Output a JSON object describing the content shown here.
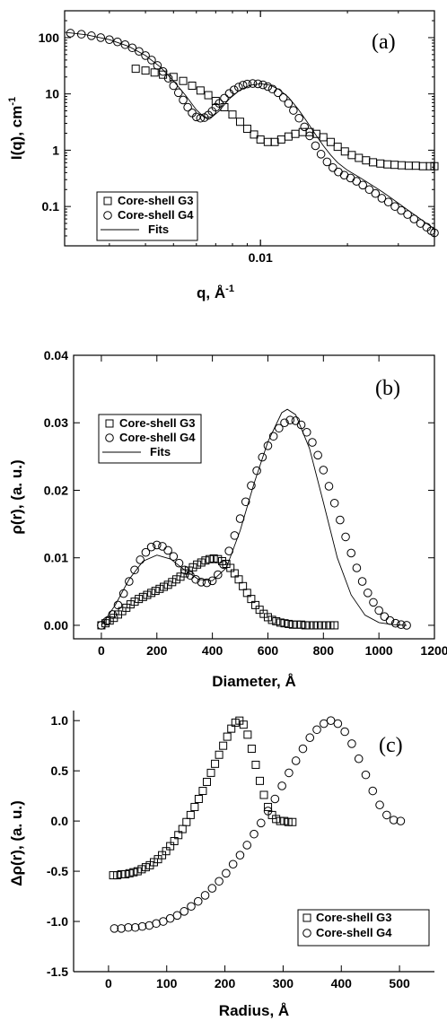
{
  "chart_data": [
    {
      "type": "scatter",
      "panel_label": "(a)",
      "xlabel": "q, Å",
      "xlabel_sup": "-1",
      "ylabel": "I(q), cm",
      "ylabel_sup": "-1",
      "xscale": "log",
      "yscale": "log",
      "xlim": [
        0.0021,
        0.04
      ],
      "ylim": [
        0.02,
        300
      ],
      "x_tick_labels": [
        {
          "value": 0.01,
          "label": "0.01"
        }
      ],
      "y_tick_labels": [
        {
          "value": 0.1,
          "label": "0.1"
        },
        {
          "value": 1,
          "label": "1"
        },
        {
          "value": 10,
          "label": "10"
        },
        {
          "value": 100,
          "label": "100"
        }
      ],
      "legend": {
        "position": "bottom-left",
        "entries": [
          "Core-shell G3",
          "Core-shell G4",
          "Fits"
        ]
      },
      "series": [
        {
          "name": "Core-shell G3",
          "marker": "square",
          "x": [
            0.0037,
            0.004,
            0.0043,
            0.0046,
            0.005,
            0.0054,
            0.0058,
            0.0062,
            0.0066,
            0.007,
            0.0075,
            0.008,
            0.0085,
            0.009,
            0.0095,
            0.01,
            0.0106,
            0.0112,
            0.0118,
            0.0125,
            0.0132,
            0.014,
            0.0148,
            0.0156,
            0.0165,
            0.0175,
            0.0185,
            0.0196,
            0.0207,
            0.0219,
            0.0232,
            0.0245,
            0.026,
            0.0275,
            0.0291,
            0.0308,
            0.0326,
            0.0345,
            0.0365,
            0.0386,
            0.04
          ],
          "y": [
            28,
            26,
            24,
            22,
            20,
            17,
            14,
            11.5,
            9.5,
            7.5,
            5.8,
            4.3,
            3.2,
            2.4,
            1.9,
            1.55,
            1.4,
            1.4,
            1.55,
            1.75,
            1.95,
            2.1,
            2.1,
            1.95,
            1.7,
            1.4,
            1.15,
            0.95,
            0.82,
            0.73,
            0.66,
            0.61,
            0.58,
            0.56,
            0.55,
            0.54,
            0.53,
            0.53,
            0.52,
            0.52,
            0.52
          ]
        },
        {
          "name": "Core-shell G4",
          "marker": "circle",
          "x": [
            0.0022,
            0.0024,
            0.0026,
            0.0028,
            0.003,
            0.0032,
            0.0034,
            0.0036,
            0.0038,
            0.004,
            0.0042,
            0.0044,
            0.0046,
            0.0048,
            0.005,
            0.0052,
            0.0054,
            0.0056,
            0.0058,
            0.006,
            0.0062,
            0.0064,
            0.0066,
            0.0068,
            0.007,
            0.0072,
            0.0075,
            0.0078,
            0.0081,
            0.0084,
            0.0087,
            0.009,
            0.0094,
            0.0098,
            0.0102,
            0.0106,
            0.011,
            0.0115,
            0.012,
            0.0125,
            0.013,
            0.0136,
            0.0142,
            0.0148,
            0.0155,
            0.0162,
            0.017,
            0.0178,
            0.0186,
            0.0195,
            0.0205,
            0.0215,
            0.0226,
            0.0238,
            0.025,
            0.0263,
            0.0277,
            0.0292,
            0.0307,
            0.0323,
            0.034,
            0.0358,
            0.0376,
            0.039,
            0.04
          ],
          "y": [
            120,
            115,
            108,
            100,
            92,
            84,
            75,
            66,
            57,
            48,
            40,
            32,
            25,
            19,
            14,
            10.5,
            7.8,
            5.8,
            4.6,
            3.9,
            3.7,
            3.8,
            4.2,
            4.9,
            5.8,
            6.8,
            8.4,
            10.2,
            11.8,
            13.2,
            14.3,
            15.0,
            15.3,
            15.1,
            14.5,
            13.5,
            12.2,
            10.5,
            8.6,
            6.8,
            5.1,
            3.7,
            2.6,
            1.8,
            1.2,
            0.85,
            0.62,
            0.49,
            0.41,
            0.36,
            0.32,
            0.28,
            0.24,
            0.2,
            0.17,
            0.14,
            0.12,
            0.1,
            0.085,
            0.072,
            0.06,
            0.05,
            0.043,
            0.037,
            0.034
          ]
        },
        {
          "name": "Fits",
          "line": true,
          "x": [
            0.0021,
            0.0025,
            0.003,
            0.0035,
            0.004,
            0.0045,
            0.005,
            0.0055,
            0.006,
            0.0064,
            0.0068,
            0.0072,
            0.0078,
            0.0085,
            0.0092,
            0.01,
            0.0108,
            0.0116,
            0.0125,
            0.0135,
            0.0145,
            0.0155,
            0.0165,
            0.0175,
            0.0185,
            0.02,
            0.022,
            0.024,
            0.0265,
            0.029,
            0.032,
            0.035,
            0.038,
            0.04
          ],
          "y": [
            125,
            112,
            92,
            70,
            48,
            30,
            17,
            9.5,
            5.2,
            3.8,
            3.9,
            5.0,
            8.2,
            11.8,
            14.2,
            15.2,
            14.3,
            12.0,
            8.7,
            5.4,
            3.2,
            1.9,
            1.2,
            0.82,
            0.6,
            0.44,
            0.33,
            0.25,
            0.18,
            0.13,
            0.09,
            0.065,
            0.048,
            0.04
          ]
        }
      ]
    },
    {
      "type": "scatter",
      "panel_label": "(b)",
      "xlabel": "Diameter, Å",
      "ylabel": "ρ(r), (a. u.)",
      "xlim": [
        -100,
        1200
      ],
      "ylim": [
        -0.002,
        0.04
      ],
      "x_tick_labels": [
        {
          "value": 0,
          "label": "0"
        },
        {
          "value": 200,
          "label": "200"
        },
        {
          "value": 400,
          "label": "400"
        },
        {
          "value": 600,
          "label": "600"
        },
        {
          "value": 800,
          "label": "800"
        },
        {
          "value": 1000,
          "label": "1000"
        },
        {
          "value": 1200,
          "label": "1200"
        }
      ],
      "y_tick_labels": [
        {
          "value": 0.0,
          "label": "0.00"
        },
        {
          "value": 0.01,
          "label": "0.01"
        },
        {
          "value": 0.02,
          "label": "0.02"
        },
        {
          "value": 0.03,
          "label": "0.03"
        },
        {
          "value": 0.04,
          "label": "0.04"
        }
      ],
      "legend": {
        "position": "top-left",
        "entries": [
          "Core-shell G3",
          "Core-shell G4",
          "Fits"
        ]
      },
      "series": [
        {
          "name": "Core-shell G3",
          "marker": "square",
          "x": [
            0,
            15,
            30,
            45,
            60,
            75,
            90,
            105,
            120,
            135,
            150,
            165,
            180,
            195,
            210,
            225,
            240,
            255,
            270,
            285,
            300,
            315,
            330,
            345,
            360,
            375,
            390,
            405,
            420,
            435,
            450,
            465,
            480,
            495,
            510,
            525,
            540,
            555,
            570,
            585,
            600,
            615,
            630,
            645,
            660,
            675,
            690,
            705,
            720,
            735,
            750,
            765,
            780,
            795,
            810,
            825,
            840
          ],
          "y": [
            0.0,
            0.0003,
            0.0007,
            0.0011,
            0.0016,
            0.0021,
            0.0026,
            0.0031,
            0.0035,
            0.0039,
            0.0042,
            0.0045,
            0.0048,
            0.0051,
            0.0054,
            0.0057,
            0.006,
            0.0064,
            0.0068,
            0.0072,
            0.0077,
            0.0081,
            0.0086,
            0.009,
            0.0093,
            0.0096,
            0.0098,
            0.0099,
            0.0098,
            0.0095,
            0.0091,
            0.0085,
            0.0077,
            0.0068,
            0.0058,
            0.0048,
            0.0039,
            0.003,
            0.0023,
            0.0017,
            0.0012,
            0.0008,
            0.0006,
            0.0004,
            0.0003,
            0.0002,
            0.0001,
            0.0001,
            0.0001,
            0.0,
            0.0,
            0.0,
            0.0,
            0.0,
            0.0,
            0.0,
            0.0
          ]
        },
        {
          "name": "Core-shell G4",
          "marker": "circle",
          "x": [
            0,
            20,
            40,
            60,
            80,
            100,
            120,
            140,
            160,
            180,
            200,
            220,
            240,
            260,
            280,
            300,
            320,
            340,
            360,
            380,
            400,
            420,
            440,
            460,
            480,
            500,
            520,
            540,
            560,
            580,
            600,
            620,
            640,
            660,
            680,
            700,
            720,
            740,
            760,
            780,
            800,
            820,
            840,
            860,
            880,
            900,
            920,
            940,
            960,
            980,
            1000,
            1020,
            1040,
            1060,
            1080,
            1100
          ],
          "y": [
            0.0,
            0.0006,
            0.0016,
            0.003,
            0.0047,
            0.0065,
            0.0082,
            0.0097,
            0.0108,
            0.0116,
            0.0119,
            0.0117,
            0.0111,
            0.0102,
            0.0092,
            0.0082,
            0.0074,
            0.0068,
            0.0064,
            0.0063,
            0.0066,
            0.0075,
            0.009,
            0.011,
            0.0133,
            0.0158,
            0.0183,
            0.0207,
            0.0229,
            0.0249,
            0.0266,
            0.028,
            0.0292,
            0.03,
            0.0304,
            0.0303,
            0.0297,
            0.0286,
            0.0271,
            0.0252,
            0.023,
            0.0206,
            0.0181,
            0.0156,
            0.0131,
            0.0107,
            0.0085,
            0.0065,
            0.0048,
            0.0034,
            0.0022,
            0.0013,
            0.0007,
            0.0003,
            0.0001,
            0.0
          ]
        },
        {
          "name": "Fits",
          "line": true,
          "x": [
            0,
            50,
            100,
            150,
            200,
            250,
            300,
            350,
            400,
            450,
            500,
            550,
            600,
            650,
            670,
            700,
            750,
            800,
            850,
            900,
            950,
            1000,
            1050,
            1100
          ],
          "y": [
            0.0,
            0.003,
            0.0068,
            0.0095,
            0.0104,
            0.0098,
            0.0082,
            0.0068,
            0.0066,
            0.0085,
            0.014,
            0.021,
            0.0272,
            0.0315,
            0.032,
            0.0312,
            0.0262,
            0.0182,
            0.01,
            0.0045,
            0.0015,
            0.0004,
            0.0001,
            0.0
          ]
        }
      ]
    },
    {
      "type": "scatter",
      "panel_label": "(c)",
      "xlabel": "Radius, Å",
      "ylabel": "Δρ(r), (a. u.)",
      "xlim": [
        -60,
        560
      ],
      "ylim": [
        -1.5,
        1.1
      ],
      "x_tick_labels": [
        {
          "value": 0,
          "label": "0"
        },
        {
          "value": 100,
          "label": "100"
        },
        {
          "value": 200,
          "label": "200"
        },
        {
          "value": 300,
          "label": "300"
        },
        {
          "value": 400,
          "label": "400"
        },
        {
          "value": 500,
          "label": "500"
        }
      ],
      "y_tick_labels": [
        {
          "value": -1.5,
          "label": "-1.5"
        },
        {
          "value": -1.0,
          "label": "-1.0"
        },
        {
          "value": -0.5,
          "label": "-0.5"
        },
        {
          "value": 0.0,
          "label": "0.0"
        },
        {
          "value": 0.5,
          "label": "0.5"
        },
        {
          "value": 1.0,
          "label": "1.0"
        }
      ],
      "legend": {
        "position": "bottom-right",
        "entries": [
          "Core-shell G3",
          "Core-shell G4"
        ]
      },
      "series": [
        {
          "name": "Core-shell G3",
          "marker": "square",
          "x": [
            8,
            15,
            22,
            29,
            36,
            43,
            50,
            57,
            64,
            71,
            78,
            85,
            92,
            99,
            106,
            113,
            120,
            127,
            134,
            141,
            148,
            155,
            162,
            169,
            176,
            183,
            190,
            197,
            204,
            211,
            218,
            225,
            232,
            239,
            246,
            253,
            260,
            267,
            274,
            281,
            288,
            295,
            302,
            309,
            316
          ],
          "y": [
            -0.54,
            -0.54,
            -0.53,
            -0.53,
            -0.52,
            -0.51,
            -0.5,
            -0.48,
            -0.46,
            -0.44,
            -0.41,
            -0.38,
            -0.34,
            -0.3,
            -0.25,
            -0.2,
            -0.14,
            -0.08,
            -0.01,
            0.06,
            0.14,
            0.22,
            0.3,
            0.39,
            0.48,
            0.57,
            0.66,
            0.75,
            0.84,
            0.92,
            0.98,
            1.0,
            0.96,
            0.86,
            0.72,
            0.56,
            0.4,
            0.26,
            0.14,
            0.06,
            0.02,
            0.0,
            0.0,
            -0.01,
            -0.01
          ]
        },
        {
          "name": "Core-shell G4",
          "marker": "circle",
          "x": [
            10,
            22,
            34,
            46,
            58,
            70,
            82,
            94,
            106,
            118,
            130,
            142,
            154,
            166,
            178,
            190,
            202,
            214,
            226,
            238,
            250,
            262,
            274,
            286,
            298,
            310,
            322,
            334,
            346,
            358,
            370,
            382,
            394,
            406,
            418,
            430,
            442,
            454,
            466,
            478,
            490,
            502
          ],
          "y": [
            -1.07,
            -1.07,
            -1.06,
            -1.06,
            -1.05,
            -1.04,
            -1.02,
            -1.0,
            -0.97,
            -0.94,
            -0.9,
            -0.85,
            -0.8,
            -0.74,
            -0.67,
            -0.6,
            -0.52,
            -0.43,
            -0.34,
            -0.24,
            -0.13,
            -0.02,
            0.1,
            0.22,
            0.35,
            0.48,
            0.6,
            0.72,
            0.83,
            0.91,
            0.97,
            1.0,
            0.97,
            0.89,
            0.77,
            0.62,
            0.46,
            0.3,
            0.16,
            0.06,
            0.01,
            0.0
          ]
        }
      ]
    }
  ]
}
